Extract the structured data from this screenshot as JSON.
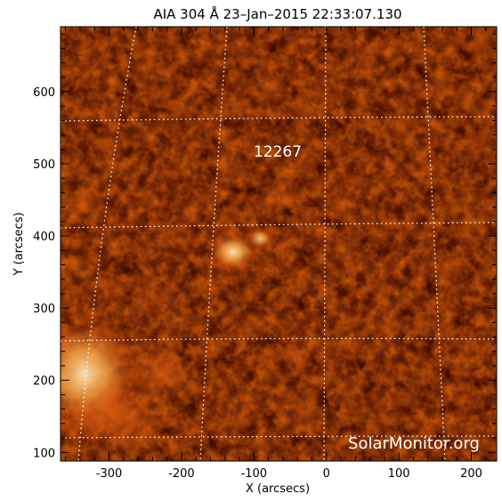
{
  "title": "AIA 304 Å 23–Jan–2015 22:33:07.130",
  "x_axis": {
    "label": "X (arcsecs)",
    "ticks": [
      "-300",
      "-200",
      "-100",
      "0",
      "100",
      "200"
    ],
    "tick_values": [
      -300,
      -200,
      -100,
      0,
      100,
      200
    ],
    "range": [
      -367,
      235
    ]
  },
  "y_axis": {
    "label": "Y (arcsecs)",
    "ticks": [
      "100",
      "200",
      "300",
      "400",
      "500",
      "600"
    ],
    "tick_values": [
      100,
      200,
      300,
      400,
      500,
      600
    ],
    "range": [
      88,
      690
    ]
  },
  "annotation": {
    "region_label": "12267",
    "x_arcsec": -66,
    "y_arcsec": 515
  },
  "watermark": "SolarMonitor.org",
  "colors": {
    "background": "#2a0400",
    "plasma_mid": "#8a1e02",
    "plasma_bright": "#f07a1a",
    "plasma_hot": "#ffe0a6",
    "grid": "#ffffff"
  },
  "image_alt": "solar chromosphere 304 Å image",
  "grid_dotted": true
}
